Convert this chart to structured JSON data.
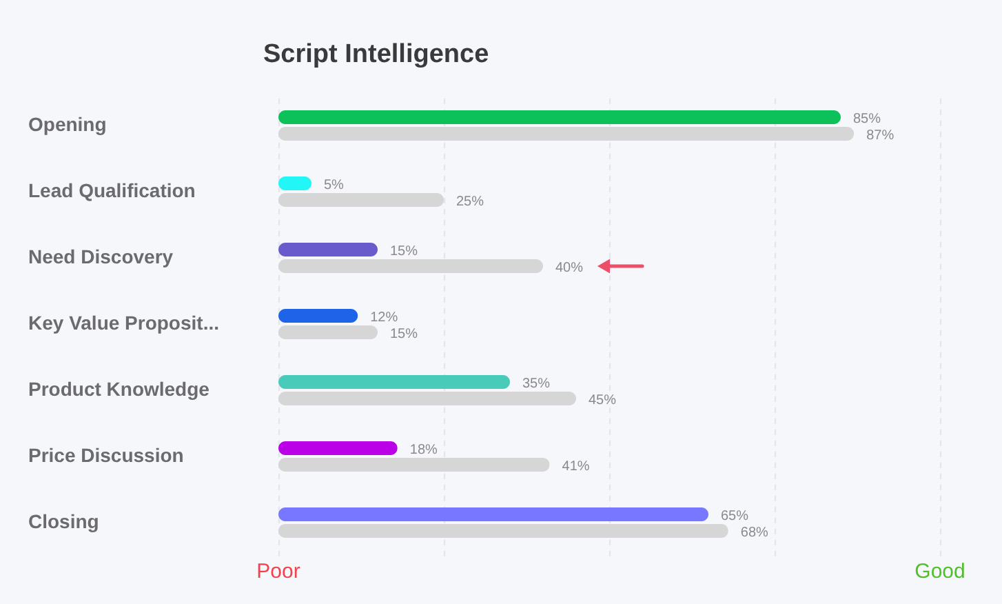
{
  "chart_data": {
    "type": "bar",
    "orientation": "horizontal",
    "title": "Script Intelligence",
    "categories": [
      "Opening",
      "Lead Qualification",
      "Need Discovery",
      "Key Value Proposit...",
      "Product Knowledge",
      "Price Discussion",
      "Closing"
    ],
    "series": [
      {
        "colors": [
          "#0cc15a",
          "#22f6f6",
          "#6a5bcd",
          "#1f64e8",
          "#48cbb9",
          "#bb00e8",
          "#7777ff"
        ],
        "values": [
          85,
          5,
          15,
          12,
          35,
          18,
          65
        ],
        "value_labels": [
          "85%",
          "5%",
          "15%",
          "12%",
          "35%",
          "18%",
          "65%"
        ]
      },
      {
        "color": "#d6d6d6",
        "values": [
          87,
          25,
          40,
          15,
          45,
          41,
          68
        ],
        "value_labels": [
          "87%",
          "25%",
          "40%",
          "15%",
          "45%",
          "41%",
          "68%"
        ]
      }
    ],
    "xlim": [
      0,
      100
    ],
    "xticks": [
      {
        "value": 0,
        "label": null
      },
      {
        "value": 25,
        "label": null
      },
      {
        "value": 50,
        "label": null
      },
      {
        "value": 75,
        "label": null
      },
      {
        "value": 100,
        "label": null
      }
    ],
    "annotations": [
      "Poor",
      "Good"
    ],
    "grid": "x"
  }
}
